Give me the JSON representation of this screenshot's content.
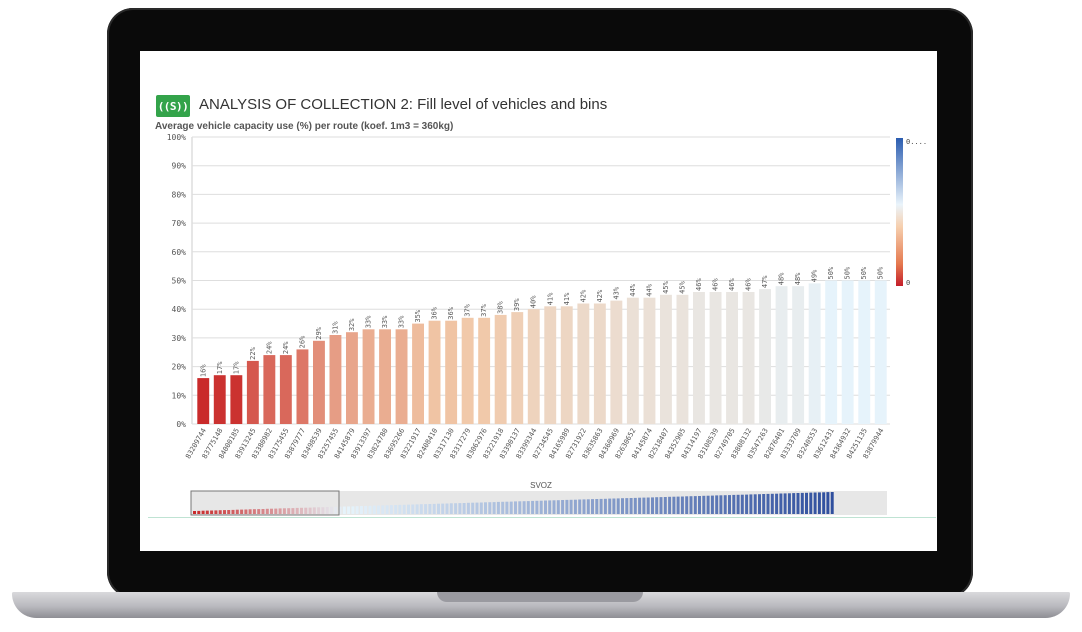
{
  "header": {
    "logo_text": "((S))",
    "title": "ANALYSIS OF COLLECTION 2: Fill level of vehicles and bins",
    "subtitle": "Average vehicle capacity use (%) per route (koef. 1m3 = 360kg)"
  },
  "colors": {
    "low": "#c92a2a",
    "mid": "#f1c7a6",
    "high": "#e6f3fb",
    "legend_top": "#2b5db0",
    "scrollbar_bar": "#2f4f9e"
  },
  "legend": {
    "top_label": "0....",
    "bottom_label": "0"
  },
  "scrollbar": {
    "label": "SVOZ"
  },
  "chart_data": {
    "type": "bar",
    "title": "Average vehicle capacity use (%) per route (koef. 1m3 = 360kg)",
    "xlabel": "",
    "ylabel": "",
    "ylim": [
      0,
      100
    ],
    "yticks": [
      "0%",
      "10%",
      "20%",
      "30%",
      "40%",
      "50%",
      "60%",
      "70%",
      "80%",
      "90%",
      "100%"
    ],
    "grid": true,
    "legend_position": "right",
    "categories": [
      "83209744",
      "83775148",
      "84000185",
      "83913245",
      "83380982",
      "83175455",
      "83879777",
      "83498539",
      "83257455",
      "84145879",
      "83913397",
      "83824780",
      "83695266",
      "83221917",
      "82408410",
      "83317130",
      "83317279",
      "83062976",
      "83221918",
      "83390137",
      "83399344",
      "82734545",
      "84165989",
      "82731922",
      "83635863",
      "84360969",
      "82630652",
      "84145874",
      "82518407",
      "84352905",
      "84314197",
      "83108539",
      "82749705",
      "83808132",
      "83547263",
      "82876401",
      "83333709",
      "83240553",
      "83612431",
      "84364932",
      "84251135",
      "83879944"
    ],
    "values": [
      16,
      17,
      17,
      22,
      24,
      24,
      26,
      29,
      31,
      32,
      33,
      33,
      33,
      35,
      36,
      36,
      37,
      37,
      38,
      39,
      40,
      41,
      41,
      42,
      42,
      43,
      44,
      44,
      45,
      45,
      46,
      46,
      46,
      46,
      47,
      48,
      48,
      49,
      50,
      50,
      50,
      50
    ],
    "data_labels": [
      "16%",
      "17%",
      "17%",
      "22%",
      "24%",
      "24%",
      "26%",
      "29%",
      "31%",
      "32%",
      "33%",
      "33%",
      "33%",
      "35%",
      "36%",
      "36%",
      "37%",
      "37%",
      "38%",
      "39%",
      "40%",
      "41%",
      "41%",
      "42%",
      "42%",
      "43%",
      "44%",
      "44%",
      "45%",
      "45%",
      "46%",
      "46%",
      "46%",
      "46%",
      "47%",
      "48%",
      "48%",
      "49%",
      "50%",
      "50%",
      "50%",
      "50%"
    ]
  }
}
